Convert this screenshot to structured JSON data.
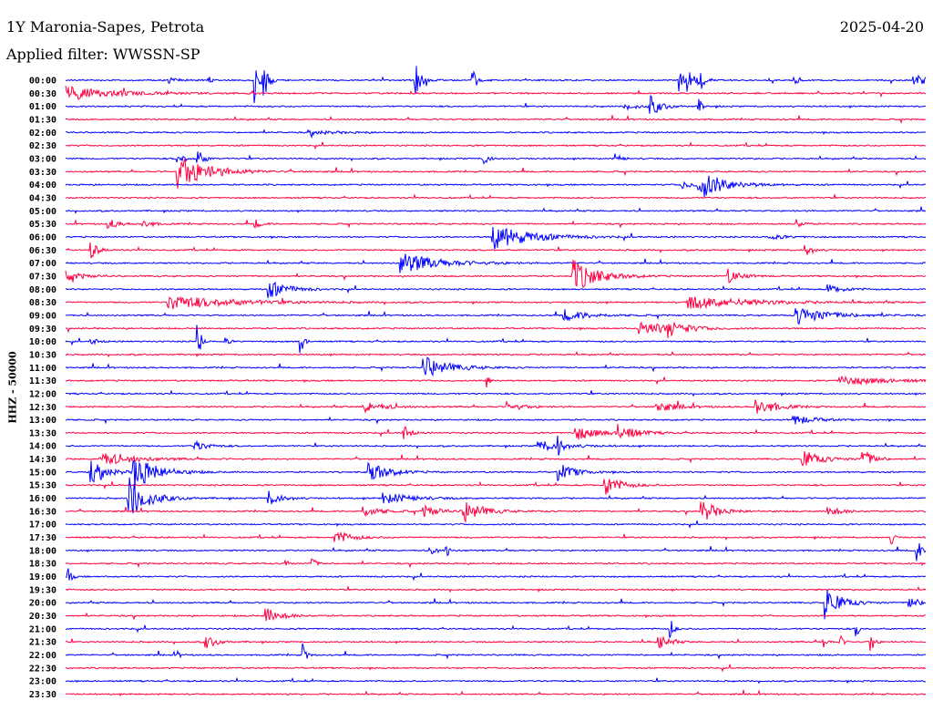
{
  "header": {
    "station": "1Y Maronia-Sapes, Petrota",
    "filter": "Applied filter: WWSSN-SP",
    "date": "2025-04-20",
    "channel_scale": "HHZ - 50000"
  },
  "chart_data": {
    "type": "helicorder",
    "title": "1Y Maronia-Sapes, Petrota",
    "minutes_per_line": 30,
    "colors": [
      "#0000ff",
      "#ff0040"
    ],
    "row_labels": [
      "00:00",
      "00:30",
      "01:00",
      "01:30",
      "02:00",
      "02:30",
      "03:00",
      "03:30",
      "04:00",
      "04:30",
      "05:00",
      "05:30",
      "06:00",
      "06:30",
      "07:00",
      "07:30",
      "08:00",
      "08:30",
      "09:00",
      "09:30",
      "10:00",
      "10:30",
      "11:00",
      "11:30",
      "12:00",
      "12:30",
      "13:00",
      "13:30",
      "14:00",
      "14:30",
      "15:00",
      "15:30",
      "16:00",
      "16:30",
      "17:00",
      "17:30",
      "18:00",
      "18:30",
      "19:00",
      "19:30",
      "20:00",
      "20:30",
      "21:00",
      "21:30",
      "22:00",
      "22:30",
      "23:00",
      "23:30"
    ],
    "events_row_minute_amp_dur": [
      [
        0,
        6.6,
        30,
        0.15
      ],
      [
        0,
        6.9,
        20,
        0.15
      ],
      [
        0,
        12.2,
        18,
        0.2
      ],
      [
        0,
        14.2,
        12,
        0.15
      ],
      [
        0,
        21.4,
        12,
        0.15
      ],
      [
        0,
        21.7,
        15,
        0.15
      ],
      [
        0,
        22.1,
        14,
        0.15
      ],
      [
        0,
        25.4,
        8,
        0.1
      ],
      [
        0,
        29.6,
        5,
        1
      ],
      [
        0,
        3.6,
        3,
        0.3
      ],
      [
        0,
        5,
        4,
        0.1
      ],
      [
        1,
        0,
        8,
        1.5
      ],
      [
        2,
        20.4,
        12,
        0.3
      ],
      [
        2,
        22.1,
        8,
        0.1
      ],
      [
        2,
        19.5,
        3,
        0.6
      ],
      [
        4,
        8.5,
        2,
        1
      ],
      [
        6,
        3.9,
        8,
        0.2
      ],
      [
        6,
        4.6,
        10,
        0.2
      ],
      [
        6,
        14.6,
        8,
        0.15
      ],
      [
        6,
        19.2,
        6,
        0.15
      ],
      [
        7,
        3.9,
        18,
        1
      ],
      [
        8,
        22.1,
        16,
        0.8
      ],
      [
        8,
        21.5,
        4,
        0.4
      ],
      [
        11,
        1.5,
        6,
        0.3
      ],
      [
        11,
        2.7,
        5,
        0.3
      ],
      [
        11,
        6.6,
        5,
        0.2
      ],
      [
        11,
        25.5,
        5,
        0.2
      ],
      [
        12,
        14.9,
        14,
        1.2
      ],
      [
        12,
        24.5,
        3,
        0.5
      ],
      [
        13,
        0.9,
        10,
        0.2
      ],
      [
        13,
        25.8,
        8,
        0.2
      ],
      [
        14,
        11.7,
        12,
        1.2
      ],
      [
        15,
        17.7,
        18,
        0.8
      ],
      [
        15,
        23.1,
        8,
        0.4
      ],
      [
        15,
        0,
        6,
        0.5
      ],
      [
        16,
        7.1,
        10,
        0.6
      ],
      [
        16,
        26.6,
        5,
        0.5
      ],
      [
        17,
        3.6,
        8,
        2
      ],
      [
        17,
        21.7,
        7,
        2
      ],
      [
        18,
        17.4,
        6,
        0.8
      ],
      [
        18,
        25.5,
        10,
        1
      ],
      [
        19,
        20,
        8,
        1
      ],
      [
        19,
        21,
        8,
        0.5
      ],
      [
        20,
        4.6,
        25,
        0.1
      ],
      [
        20,
        8.2,
        15,
        0.1
      ],
      [
        20,
        0.9,
        4,
        0.2
      ],
      [
        20,
        5.6,
        4,
        0.1
      ],
      [
        22,
        12.5,
        12,
        0.8
      ],
      [
        23,
        14.7,
        8,
        0.1
      ],
      [
        23,
        27,
        5,
        1.5
      ],
      [
        25,
        10.4,
        6,
        0.7
      ],
      [
        25,
        15.4,
        5,
        0.5
      ],
      [
        25,
        20.6,
        7,
        0.6
      ],
      [
        25,
        24.1,
        10,
        0.6
      ],
      [
        26,
        25.4,
        6,
        0.6
      ],
      [
        27,
        11.8,
        8,
        0.2
      ],
      [
        27,
        17.8,
        8,
        0.7
      ],
      [
        27,
        19.3,
        10,
        0.5
      ],
      [
        28,
        4.5,
        6,
        0.4
      ],
      [
        28,
        16.5,
        6,
        0.8
      ],
      [
        28,
        17.2,
        12,
        0.1
      ],
      [
        29,
        1.2,
        8,
        1
      ],
      [
        29,
        25.7,
        10,
        0.6
      ],
      [
        29,
        27.8,
        12,
        0.3
      ],
      [
        30,
        0.9,
        12,
        0.5
      ],
      [
        30,
        2.4,
        20,
        0.7
      ],
      [
        30,
        10.6,
        12,
        0.6
      ],
      [
        30,
        17.2,
        10,
        0.5
      ],
      [
        31,
        18.8,
        12,
        0.5
      ],
      [
        32,
        2.2,
        25,
        0.6
      ],
      [
        32,
        7.1,
        8,
        0.4
      ],
      [
        32,
        11.1,
        6,
        0.9
      ],
      [
        33,
        10.4,
        6,
        0.5
      ],
      [
        33,
        12.5,
        6,
        0.5
      ],
      [
        33,
        13.9,
        12,
        0.6
      ],
      [
        33,
        22.2,
        12,
        0.5
      ],
      [
        33,
        26.6,
        6,
        0.4
      ],
      [
        35,
        9.4,
        8,
        0.5
      ],
      [
        35,
        28.8,
        8,
        0.1
      ],
      [
        36,
        12.8,
        10,
        0.1
      ],
      [
        36,
        13.3,
        8,
        0.1
      ],
      [
        36,
        29.7,
        18,
        0.1
      ],
      [
        37,
        8.6,
        10,
        0.1
      ],
      [
        37,
        7.7,
        5,
        0.1
      ],
      [
        38,
        0.1,
        10,
        0.1
      ],
      [
        40,
        26.5,
        18,
        0.5
      ],
      [
        40,
        29.4,
        8,
        0.3
      ],
      [
        41,
        7.0,
        8,
        0.5
      ],
      [
        42,
        21.1,
        12,
        0.1
      ],
      [
        42,
        27.6,
        8,
        0.1
      ],
      [
        43,
        4.9,
        8,
        0.3
      ],
      [
        43,
        20.7,
        8,
        0.3
      ],
      [
        43,
        26.4,
        10,
        0.1
      ],
      [
        43,
        27.0,
        10,
        0.1
      ],
      [
        43,
        28.1,
        12,
        0.1
      ],
      [
        44,
        8.3,
        12,
        0.1
      ],
      [
        44,
        3.9,
        4,
        0.1
      ]
    ]
  }
}
